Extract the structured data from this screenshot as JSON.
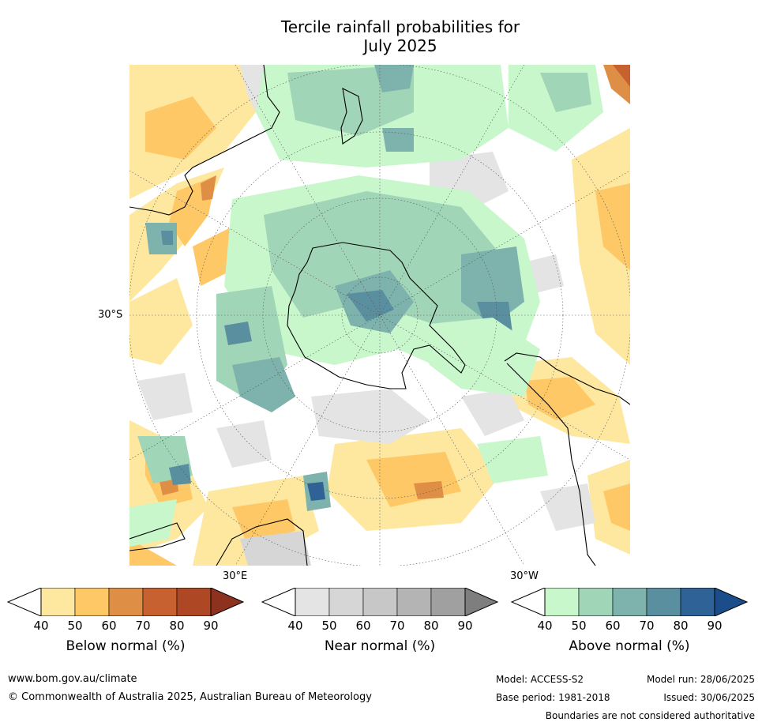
{
  "title_line1": "Tercile rainfall probabilities for",
  "title_line2": "July 2025",
  "map": {
    "lat_label": "30°S",
    "lon_label_east": "30°E",
    "lon_label_west": "30°W"
  },
  "colorbars": [
    {
      "title": "Below normal (%)",
      "ticks": [
        "40",
        "50",
        "60",
        "70",
        "80",
        "90"
      ],
      "colors": [
        "#fee8a0",
        "#fdc865",
        "#df8f45",
        "#c86130",
        "#ad4724"
      ],
      "extend_color": "#8e3220"
    },
    {
      "title": "Near normal (%)",
      "ticks": [
        "40",
        "50",
        "60",
        "70",
        "80",
        "90"
      ],
      "colors": [
        "#e4e4e4",
        "#d6d6d6",
        "#c7c7c7",
        "#b4b4b4",
        "#a0a0a0"
      ],
      "extend_color": "#7e7e7e"
    },
    {
      "title": "Above normal (%)",
      "ticks": [
        "40",
        "50",
        "60",
        "70",
        "80",
        "90"
      ],
      "colors": [
        "#c8f7cc",
        "#a1d5b7",
        "#7db3ac",
        "#5a8fa0",
        "#2f6397"
      ],
      "extend_color": "#1a4d8a"
    }
  ],
  "footer": {
    "website": "www.bom.gov.au/climate",
    "copyright": "© Commonwealth of Australia 2025, Australian Bureau of Meteorology",
    "model": "Model: ACCESS-S2",
    "model_run": "Model run: 28/06/2025",
    "base_period": "Base period: 1981-2018",
    "issued": "Issued: 30/06/2025",
    "disclaimer": "Boundaries are not considered authoritative"
  }
}
